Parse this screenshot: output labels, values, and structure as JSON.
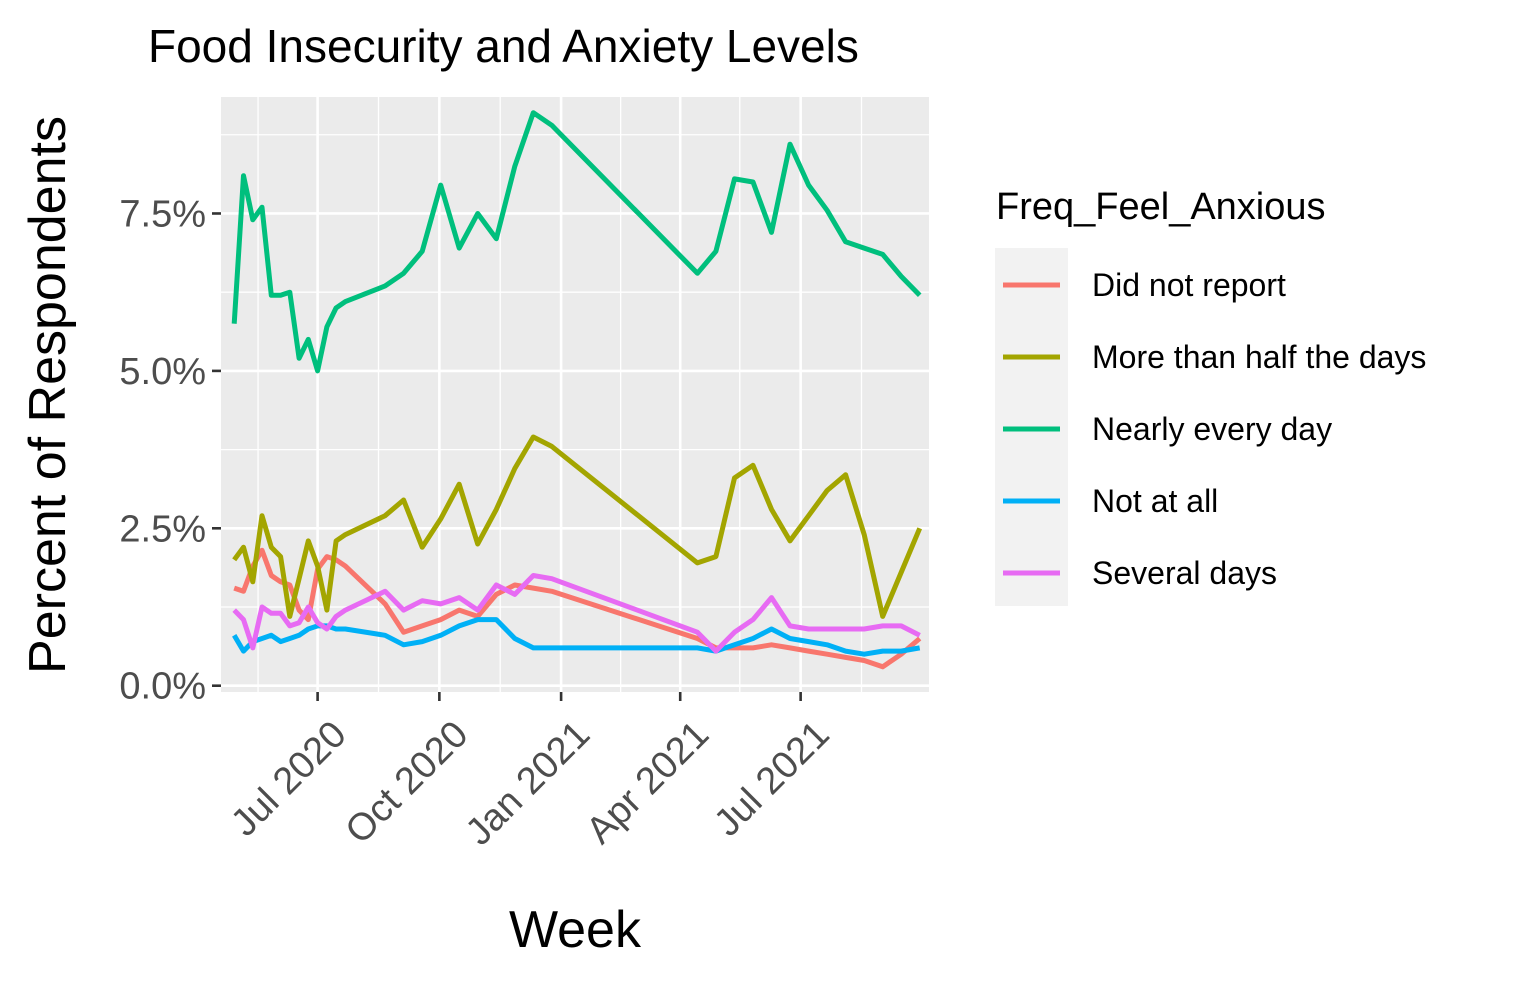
{
  "chart_data": {
    "type": "line",
    "title": "Food Insecurity and Anxiety Levels",
    "xlabel": "Week",
    "ylabel": "Percent of Respondents",
    "legend_title": "Freq_Feel_Anxious",
    "legend_position": "right",
    "grid": true,
    "x_range": [
      "2020-04-19",
      "2021-10-06"
    ],
    "y_range": [
      -0.1,
      9.35
    ],
    "x_ticks": [
      {
        "date": "2020-07-01",
        "label": "Jul 2020"
      },
      {
        "date": "2020-10-01",
        "label": "Oct 2020"
      },
      {
        "date": "2021-01-01",
        "label": "Jan 2021"
      },
      {
        "date": "2021-04-01",
        "label": "Apr 2021"
      },
      {
        "date": "2021-07-01",
        "label": "Jul 2021"
      }
    ],
    "x_minor_ticks": [
      "2020-05-17",
      "2020-08-16",
      "2020-11-16",
      "2021-02-15",
      "2021-05-16",
      "2021-08-16"
    ],
    "y_ticks": [
      {
        "value": 0,
        "label": "0.0%"
      },
      {
        "value": 2.5,
        "label": "2.5%"
      },
      {
        "value": 5,
        "label": "5.0%"
      },
      {
        "value": 7.5,
        "label": "7.5%"
      }
    ],
    "y_minor_ticks": [
      1.25,
      3.75,
      6.25,
      8.75
    ],
    "x": [
      "2020-04-29",
      "2020-05-06",
      "2020-05-13",
      "2020-05-20",
      "2020-05-27",
      "2020-06-03",
      "2020-06-10",
      "2020-06-17",
      "2020-06-24",
      "2020-07-01",
      "2020-07-08",
      "2020-07-15",
      "2020-07-22",
      "2020-08-21",
      "2020-09-04",
      "2020-09-18",
      "2020-10-02",
      "2020-10-16",
      "2020-10-30",
      "2020-11-13",
      "2020-11-27",
      "2020-12-11",
      "2020-12-25",
      "2021-04-14",
      "2021-04-28",
      "2021-05-12",
      "2021-05-26",
      "2021-06-09",
      "2021-06-23",
      "2021-07-07",
      "2021-07-21",
      "2021-08-04",
      "2021-08-18",
      "2021-09-01",
      "2021-09-15",
      "2021-09-29"
    ],
    "series": [
      {
        "name": "Did not report",
        "color": "#F8766D",
        "values": [
          1.55,
          1.5,
          1.9,
          2.15,
          1.75,
          1.65,
          1.6,
          1.2,
          1.05,
          1.85,
          2.05,
          2.0,
          1.9,
          1.3,
          0.85,
          0.95,
          1.05,
          1.2,
          1.1,
          1.45,
          1.6,
          1.55,
          1.5,
          0.75,
          0.6,
          0.6,
          0.6,
          0.65,
          0.6,
          0.55,
          0.5,
          0.45,
          0.4,
          0.3,
          0.5,
          0.75
        ]
      },
      {
        "name": "More than half the days",
        "color": "#A3A500",
        "values": [
          2.0,
          2.2,
          1.65,
          2.7,
          2.2,
          2.05,
          1.1,
          1.7,
          2.3,
          1.9,
          1.2,
          2.3,
          2.4,
          2.7,
          2.95,
          2.2,
          2.65,
          3.2,
          2.25,
          2.8,
          3.45,
          3.95,
          3.8,
          1.95,
          2.05,
          3.3,
          3.5,
          2.8,
          2.3,
          2.7,
          3.1,
          3.35,
          2.4,
          1.1,
          1.8,
          2.5
        ]
      },
      {
        "name": "Nearly every day",
        "color": "#00BF7D",
        "values": [
          5.75,
          8.1,
          7.4,
          7.6,
          6.2,
          6.2,
          6.25,
          5.2,
          5.5,
          5.0,
          5.7,
          6.0,
          6.1,
          6.35,
          6.55,
          6.9,
          7.95,
          6.95,
          7.5,
          7.1,
          8.25,
          9.1,
          8.9,
          6.55,
          6.9,
          8.05,
          8.0,
          7.2,
          8.6,
          7.95,
          7.55,
          7.05,
          6.95,
          6.85,
          6.5,
          6.2
        ]
      },
      {
        "name": "Not at all",
        "color": "#00B0F6",
        "values": [
          0.8,
          0.55,
          0.7,
          0.75,
          0.8,
          0.7,
          0.75,
          0.8,
          0.9,
          0.95,
          0.95,
          0.9,
          0.9,
          0.8,
          0.65,
          0.7,
          0.8,
          0.95,
          1.05,
          1.05,
          0.75,
          0.6,
          0.6,
          0.6,
          0.55,
          0.65,
          0.75,
          0.9,
          0.75,
          0.7,
          0.65,
          0.55,
          0.5,
          0.55,
          0.55,
          0.6
        ]
      },
      {
        "name": "Several days",
        "color": "#E76BF3",
        "values": [
          1.2,
          1.05,
          0.6,
          1.25,
          1.15,
          1.15,
          0.95,
          1.0,
          1.25,
          1.0,
          0.9,
          1.1,
          1.2,
          1.5,
          1.2,
          1.35,
          1.3,
          1.4,
          1.2,
          1.6,
          1.45,
          1.75,
          1.7,
          0.85,
          0.55,
          0.85,
          1.05,
          1.4,
          0.95,
          0.9,
          0.9,
          0.9,
          0.9,
          0.95,
          0.95,
          0.8
        ]
      }
    ]
  }
}
